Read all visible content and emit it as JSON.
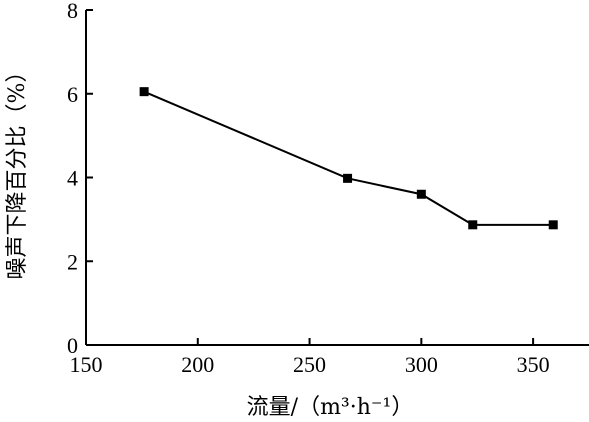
{
  "chart_data": {
    "type": "line",
    "title": "",
    "xlabel": "流量/（m³·h⁻¹）",
    "ylabel": "噪声下降百分比（%）",
    "xlim": [
      150,
      375
    ],
    "ylim": [
      0,
      8
    ],
    "xticks": [
      150,
      200,
      250,
      300,
      350
    ],
    "yticks": [
      0,
      2,
      4,
      6,
      8
    ],
    "grid": false,
    "legend": "none",
    "series": [
      {
        "color": "#000000",
        "marker": "square",
        "x": [
          176,
          267,
          300,
          323,
          359
        ],
        "y": [
          6.05,
          3.98,
          3.6,
          2.87,
          2.87
        ]
      }
    ]
  }
}
